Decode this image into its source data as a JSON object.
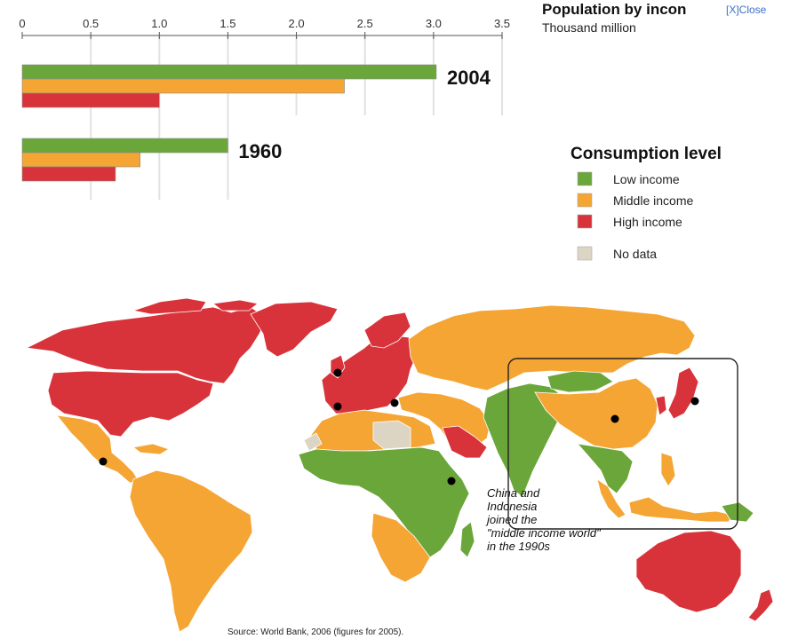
{
  "close_link": "[X]Close",
  "chart_data": {
    "type": "bar",
    "orientation": "horizontal",
    "title": "Population by incon",
    "subtitle": "Thousand million",
    "xlim": [
      0,
      3.5
    ],
    "x_ticks": [
      "0",
      "0.5",
      "1.0",
      "1.5",
      "2.0",
      "2.5",
      "3.0",
      "3.5"
    ],
    "grid": true,
    "categories": [
      "2004",
      "1960"
    ],
    "series": [
      {
        "name": "Low income",
        "color": "#6aa63a",
        "values": [
          3.02,
          1.5
        ]
      },
      {
        "name": "Middle income",
        "color": "#f5a534",
        "values": [
          2.35,
          0.86
        ]
      },
      {
        "name": "High income",
        "color": "#d8333a",
        "values": [
          1.0,
          0.68
        ]
      }
    ]
  },
  "legend": {
    "title": "Consumption level",
    "items": [
      {
        "label": "Low income",
        "color": "#6aa63a"
      },
      {
        "label": "Middle income",
        "color": "#f5a534"
      },
      {
        "label": "High income",
        "color": "#d8333a"
      },
      {
        "label": "No data",
        "color": "#ddd5c4"
      }
    ]
  },
  "map": {
    "annotation": [
      "China and",
      "Indonesia",
      "joined the",
      "\"middle income world\"",
      "in the 1990s"
    ],
    "source": "Source: World Bank, 2006 (figures for 2005).",
    "colors": {
      "low": "#6aa63a",
      "middle": "#f5a534",
      "high": "#d8333a",
      "nodata": "#ddd5c4",
      "ocean": "#ffffff"
    }
  }
}
